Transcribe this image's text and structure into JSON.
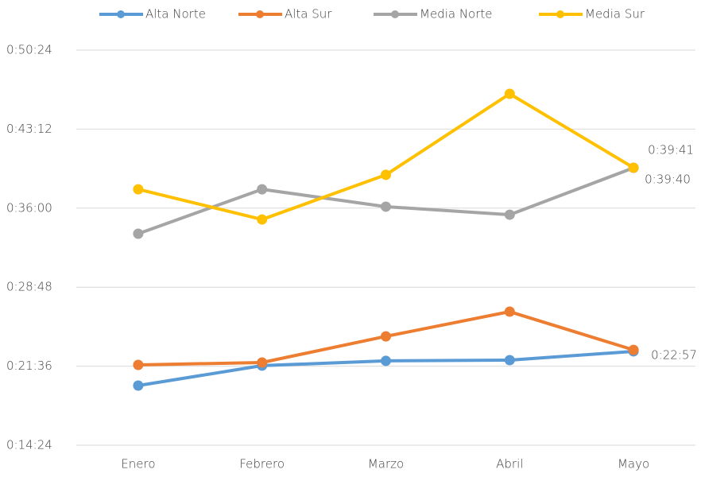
{
  "chart_data": {
    "type": "line",
    "categories": [
      "Enero",
      "Febrero",
      "Marzo",
      "Abril",
      "Mayo"
    ],
    "series": [
      {
        "name": "Alta Norte",
        "color": "#5b9bd5",
        "values": [
          1190,
          1299,
          1325,
          1329,
          1377
        ],
        "value_labels": [
          null,
          null,
          null,
          null,
          "0:22:57"
        ]
      },
      {
        "name": "Alta Sur",
        "color": "#ed7d31",
        "values": [
          1303,
          1316,
          1459,
          1594,
          1385
        ]
      },
      {
        "name": "Media Norte",
        "color": "#a5a5a5",
        "values": [
          2020,
          2263,
          2168,
          2124,
          2380
        ],
        "value_labels": [
          null,
          null,
          null,
          null,
          "0:39:40"
        ]
      },
      {
        "name": "Media Sur",
        "color": "#ffc000",
        "values": [
          2263,
          2098,
          2342,
          2785,
          2381
        ],
        "value_labels": [
          null,
          null,
          null,
          null,
          "0:39:41"
        ]
      }
    ],
    "ylim": [
      864,
      3024
    ],
    "yticks": [
      {
        "value": 864,
        "label": "0:14:24"
      },
      {
        "value": 1296,
        "label": "0:21:36"
      },
      {
        "value": 1728,
        "label": "0:28:48"
      },
      {
        "value": 2160,
        "label": "0:36:00"
      },
      {
        "value": 2592,
        "label": "0:43:12"
      },
      {
        "value": 3024,
        "label": "0:50:24"
      }
    ],
    "grid": true,
    "legend": "top"
  }
}
